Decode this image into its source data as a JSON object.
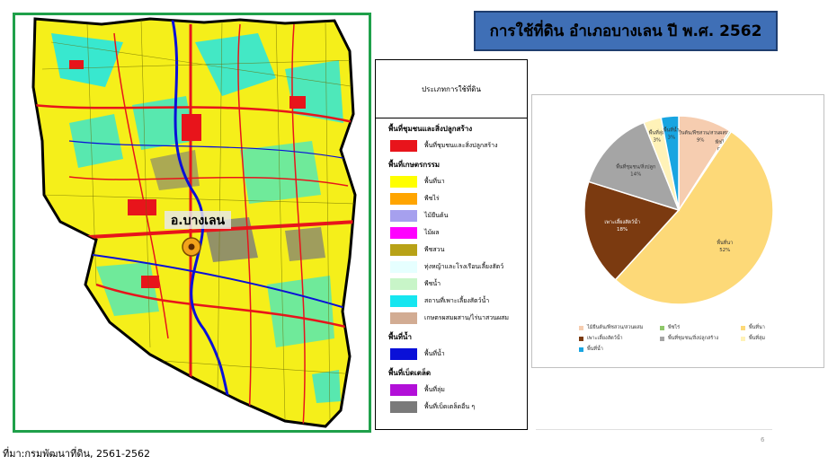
{
  "title": "การใช้ที่ดิน อำเภอบางเลน ปี พ.ศ. 2562",
  "map": {
    "district_label": "อ.บางเลน"
  },
  "legend": {
    "header": "ประเภทการใช้ที่ดิน",
    "groups": [
      {
        "title": "พื้นที่ชุมชนและสิ่งปลูกสร้าง",
        "items": [
          {
            "label": "พื้นที่ชุมชนและสิ่งปลูกสร้าง",
            "color": "#e8141b"
          }
        ]
      },
      {
        "title": "พื้นที่เกษตรกรรม",
        "items": [
          {
            "label": "พื้นที่นา",
            "color": "#ffff00"
          },
          {
            "label": "พืชไร่",
            "color": "#ffa500"
          },
          {
            "label": "ไม้ยืนต้น",
            "color": "#a6a0ee"
          },
          {
            "label": "ไม้ผล",
            "color": "#ff00ff"
          },
          {
            "label": "พืชสวน",
            "color": "#b8a217"
          },
          {
            "label": "ทุ่งหญ้าและโรงเรือนเลี้ยงสัตว์",
            "color": "#e6ffff"
          },
          {
            "label": "พืชน้ำ",
            "color": "#c8f5c8"
          },
          {
            "label": "สถานที่เพาะเลี้ยงสัตว์น้ำ",
            "color": "#16e6f0"
          },
          {
            "label": "เกษตรผสมผสาน/ไร่นาสวนผสม",
            "color": "#d2ac93"
          }
        ]
      },
      {
        "title": "พื้นที่น้ำ",
        "items": [
          {
            "label": "พื้นที่น้ำ",
            "color": "#0a10d8"
          }
        ]
      },
      {
        "title": "พื้นที่เบ็ดเตล็ด",
        "items": [
          {
            "label": "พื้นที่ลุ่ม",
            "color": "#b210d8"
          },
          {
            "label": "พื้นที่เบ็ดเตล็ดอื่น ๆ",
            "color": "#7a7a7a"
          }
        ]
      }
    ]
  },
  "pie": {
    "slices": [
      {
        "label": "ไม้ยืนต้น/พืชสวน/สวนผสม",
        "pct_label": "9%",
        "value": 9,
        "color": "#f6cdb0"
      },
      {
        "label": "พืชไร่",
        "pct_label": "0%",
        "value": 0.3,
        "color": "#8fc86a"
      },
      {
        "label": "พื้นที่นา",
        "pct_label": "52%",
        "value": 52,
        "color": "#fdd978"
      },
      {
        "label": "เพาะเลี้ยงสัตว์น้ำ",
        "pct_label": "18%",
        "value": 18,
        "color": "#7b3a10"
      },
      {
        "label": "พื้นที่ชุมชน/สิ่งปลูก",
        "pct_label": "14%",
        "value": 14,
        "color": "#a5a5a5"
      },
      {
        "label": "พื้นที่ลุ่ม",
        "pct_label": "3%",
        "value": 3,
        "color": "#fff2b8"
      },
      {
        "label": "พื้นที่น้ำ",
        "pct_label": "3%",
        "value": 3,
        "color": "#19a5e1"
      }
    ],
    "legend_rows": [
      [
        {
          "label": "ไม้ยืนต้น/พืชสวน/สวนผสม",
          "color": "#f6cdb0"
        },
        {
          "label": "พืชไร่",
          "color": "#8fc86a"
        },
        {
          "label": "พื้นที่นา",
          "color": "#fdd978"
        }
      ],
      [
        {
          "label": "เพาะเลี้ยงสัตว์น้ำ",
          "color": "#7b3a10"
        },
        {
          "label": "พื้นที่ชุมชน/สิ่งปลูกสร้าง",
          "color": "#a5a5a5"
        },
        {
          "label": "พื้นที่ลุ่ม",
          "color": "#fff2b8"
        }
      ],
      [
        {
          "label": "พื้นที่น้ำ",
          "color": "#19a5e1"
        }
      ]
    ]
  },
  "source": "ที่มา:กรมพัฒนาที่ดิน, 2561-2562",
  "page_number": "6"
}
